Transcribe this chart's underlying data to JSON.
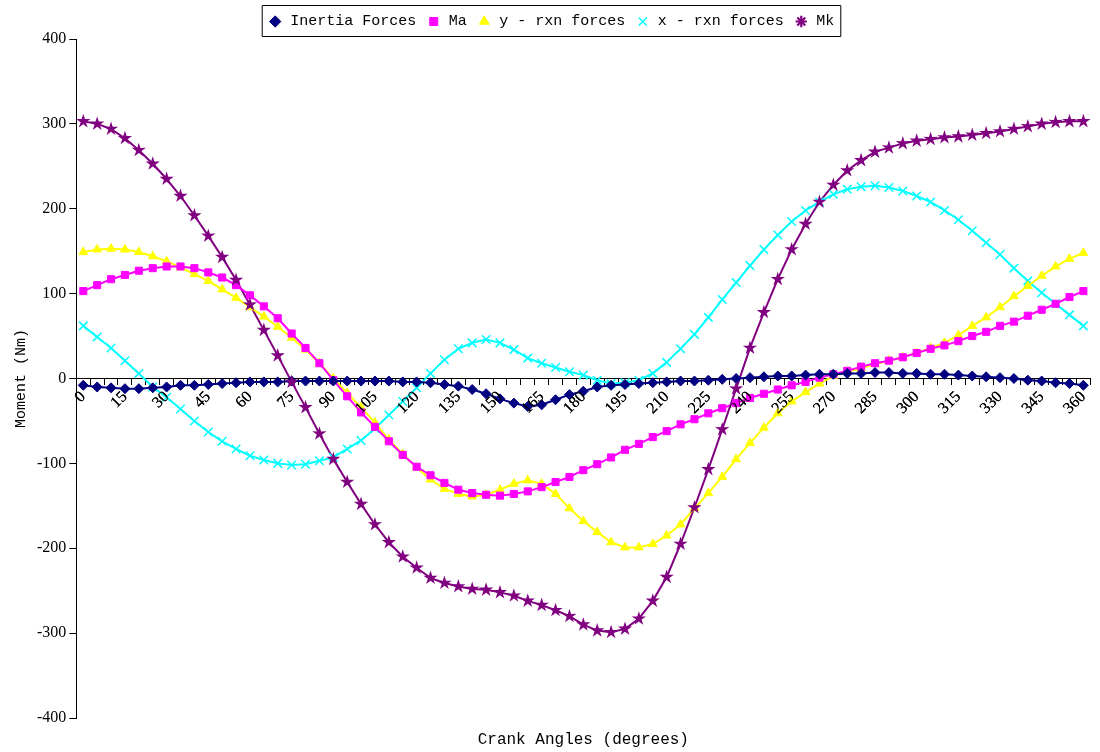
{
  "chart_data": {
    "type": "line",
    "xlabel": "Crank Angles (degrees)",
    "ylabel": "Moment (Nm)",
    "categories": [
      "0",
      null,
      null,
      "15",
      null,
      null,
      "30",
      null,
      null,
      "45",
      null,
      null,
      "60",
      null,
      null,
      "75",
      null,
      null,
      "90",
      null,
      null,
      "105",
      null,
      null,
      "120",
      null,
      null,
      "135",
      null,
      null,
      "150",
      null,
      null,
      "165",
      null,
      null,
      "180",
      null,
      null,
      "195",
      null,
      null,
      "210",
      null,
      null,
      "225",
      null,
      null,
      "240",
      null,
      null,
      "255",
      null,
      null,
      "270",
      null,
      null,
      "285",
      null,
      null,
      "300",
      null,
      null,
      "315",
      null,
      null,
      "330",
      null,
      null,
      "345",
      null,
      null,
      "360"
    ],
    "ylim": [
      -400,
      400
    ],
    "yticks": [
      -400,
      -300,
      -200,
      -100,
      0,
      100,
      200,
      300,
      400
    ],
    "grid": false,
    "legend": "top",
    "line_style": "solid",
    "series": [
      {
        "name": "Inertia Forces",
        "color": "#000080",
        "marker": "diamond",
        "values": [
          -8,
          -10,
          -11,
          -12,
          -12,
          -11,
          -10,
          -8,
          -8,
          -7,
          -6,
          -5,
          -4,
          -4,
          -4,
          -3,
          -3,
          -3,
          -3,
          -3,
          -3,
          -3,
          -3,
          -4,
          -4,
          -5,
          -7,
          -9,
          -13,
          -18,
          -24,
          -29,
          -33,
          -31,
          -25,
          -19,
          -15,
          -10,
          -8,
          -7,
          -6,
          -5,
          -4,
          -3,
          -3,
          -2,
          -1,
          0,
          1,
          2,
          3,
          3,
          4,
          5,
          5,
          6,
          6,
          7,
          7,
          6,
          6,
          5,
          5,
          4,
          3,
          2,
          1,
          0,
          -2,
          -3,
          -5,
          -6,
          -8
        ]
      },
      {
        "name": "Ma",
        "color": "#ff00ff",
        "marker": "square",
        "values": [
          103,
          110,
          117,
          122,
          127,
          130,
          132,
          132,
          130,
          125,
          119,
          110,
          98,
          85,
          71,
          53,
          36,
          18,
          -2,
          -21,
          -40,
          -57,
          -74,
          -90,
          -104,
          -114,
          -123,
          -131,
          -135,
          -137,
          -138,
          -136,
          -133,
          -128,
          -122,
          -116,
          -108,
          -101,
          -93,
          -84,
          -77,
          -69,
          -62,
          -54,
          -48,
          -41,
          -35,
          -29,
          -23,
          -18,
          -13,
          -8,
          -4,
          1,
          5,
          9,
          14,
          18,
          21,
          25,
          30,
          35,
          39,
          44,
          50,
          55,
          62,
          67,
          74,
          81,
          88,
          96,
          103
        ]
      },
      {
        "name": "y - rxn forces",
        "color": "#ffff00",
        "marker": "triangle",
        "values": [
          149,
          152,
          153,
          152,
          149,
          144,
          138,
          131,
          123,
          115,
          105,
          95,
          84,
          73,
          61,
          48,
          34,
          18,
          0,
          -17,
          -34,
          -52,
          -72,
          -89,
          -105,
          -119,
          -130,
          -136,
          -139,
          -137,
          -131,
          -124,
          -120,
          -124,
          -136,
          -153,
          -168,
          -181,
          -193,
          -199,
          -199,
          -195,
          -185,
          -172,
          -153,
          -135,
          -116,
          -95,
          -76,
          -58,
          -41,
          -27,
          -16,
          -6,
          3,
          8,
          12,
          17,
          21,
          25,
          30,
          36,
          42,
          51,
          62,
          72,
          84,
          97,
          109,
          121,
          132,
          141,
          148
        ]
      },
      {
        "name": "x - rxn forces",
        "color": "#00ffff",
        "marker": "cross",
        "values": [
          62,
          49,
          36,
          21,
          6,
          -10,
          -22,
          -36,
          -50,
          -63,
          -74,
          -83,
          -91,
          -96,
          -100,
          -102,
          -101,
          -97,
          -93,
          -83,
          -73,
          -59,
          -43,
          -27,
          -11,
          6,
          22,
          35,
          42,
          46,
          42,
          34,
          24,
          18,
          13,
          8,
          4,
          -2,
          -6,
          -5,
          -2,
          6,
          19,
          35,
          52,
          72,
          93,
          113,
          133,
          152,
          169,
          185,
          198,
          208,
          217,
          223,
          226,
          227,
          225,
          221,
          215,
          208,
          198,
          187,
          174,
          160,
          146,
          130,
          115,
          101,
          88,
          75,
          62
        ]
      },
      {
        "name": "Mk",
        "color": "#800080",
        "marker": "star",
        "values": [
          303,
          300,
          294,
          283,
          269,
          253,
          235,
          215,
          192,
          168,
          143,
          116,
          87,
          57,
          27,
          -4,
          -34,
          -65,
          -95,
          -122,
          -148,
          -172,
          -193,
          -210,
          -223,
          -235,
          -241,
          -245,
          -248,
          -249,
          -252,
          -256,
          -262,
          -267,
          -273,
          -280,
          -290,
          -297,
          -299,
          -295,
          -283,
          -262,
          -234,
          -195,
          -152,
          -107,
          -60,
          -12,
          36,
          78,
          117,
          152,
          182,
          208,
          228,
          245,
          257,
          267,
          272,
          277,
          280,
          282,
          284,
          285,
          287,
          289,
          291,
          294,
          297,
          300,
          302,
          303,
          303
        ]
      }
    ]
  }
}
